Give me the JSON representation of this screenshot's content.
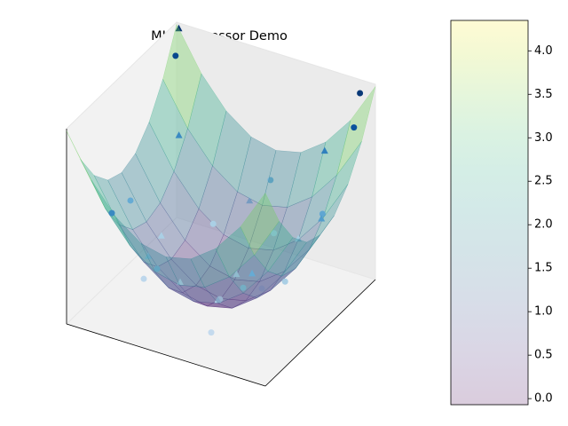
{
  "chart_data": {
    "type": "surface3d",
    "title": "MLP Regressor Demo",
    "surface": {
      "x": [
        -1,
        -0.75,
        -0.5,
        -0.25,
        0,
        0.25,
        0.5,
        0.75,
        1
      ],
      "y": [
        -1,
        -0.75,
        -0.5,
        -0.25,
        0,
        0.25,
        0.5,
        0.75,
        1
      ],
      "z": [
        [
          4.3,
          3.36,
          2.69,
          2.28,
          2.15,
          2.28,
          2.69,
          3.36,
          4.3
        ],
        [
          3.36,
          2.42,
          1.75,
          1.34,
          1.21,
          1.34,
          1.75,
          2.42,
          3.36
        ],
        [
          2.69,
          1.75,
          1.08,
          0.67,
          0.54,
          0.67,
          1.08,
          1.75,
          2.69
        ],
        [
          2.28,
          1.34,
          0.67,
          0.26,
          0.13,
          0.26,
          0.67,
          1.34,
          2.28
        ],
        [
          2.15,
          1.21,
          0.54,
          0.13,
          0,
          0.13,
          0.54,
          1.21,
          2.15
        ],
        [
          2.28,
          1.34,
          0.67,
          0.26,
          0.13,
          0.26,
          0.67,
          1.34,
          2.28
        ],
        [
          2.69,
          1.75,
          1.08,
          0.67,
          0.54,
          0.67,
          1.08,
          1.75,
          2.69
        ],
        [
          3.36,
          2.42,
          1.75,
          1.34,
          1.21,
          1.34,
          1.75,
          2.42,
          3.36
        ],
        [
          4.3,
          3.36,
          2.69,
          2.28,
          2.15,
          2.28,
          2.69,
          3.36,
          4.3
        ]
      ],
      "colormap": "viridis"
    },
    "scatter": [
      {
        "marker": "o",
        "colormap": "Blues",
        "x": [
          -0.9,
          -0.6,
          0.9,
          0.95,
          0.1,
          -0.3,
          0.5,
          0.2,
          -0.8,
          0.7,
          0,
          -0.5,
          0.3,
          0.8,
          -0.2,
          0.4
        ],
        "y": [
          0.8,
          -0.9,
          0.9,
          0.7,
          -0.2,
          0.4,
          -0.5,
          0.6,
          -0.2,
          -0.1,
          0.9,
          -0.5,
          0.2,
          0.4,
          -0.8,
          -0.9
        ],
        "z": [
          3.9,
          2.6,
          4.2,
          3.7,
          0.3,
          1.0,
          1.2,
          0.9,
          1.9,
          1.0,
          1.6,
          0.7,
          0.2,
          2.0,
          1.5,
          0.6
        ]
      },
      {
        "marker": "^",
        "colormap": "Blues",
        "x": [
          -0.95,
          0.6,
          -0.7,
          0.1,
          -0.4,
          0.9,
          0.3,
          -0.1,
          0.5,
          -0.6,
          0.7,
          -0.3
        ],
        "y": [
          0.95,
          0.8,
          0.5,
          0.1,
          -0.6,
          0.2,
          -0.6,
          0.7,
          0.5,
          0,
          -0.7,
          -0.2
        ],
        "z": [
          4.3,
          2.8,
          2.6,
          0.5,
          1.4,
          2.2,
          0.9,
          1.3,
          1.1,
          1.0,
          1.9,
          0.4
        ]
      }
    ],
    "xlim": [
      -1,
      1
    ],
    "ylim": [
      -1,
      1
    ],
    "zlim": [
      -0.07,
      4.35
    ],
    "colorbar": {
      "lim": [
        -0.07,
        4.35
      ],
      "alpha": 0.2,
      "ticks": [
        {
          "value": 0,
          "label": "0.0"
        },
        {
          "value": 0.5,
          "label": "0.5"
        },
        {
          "value": 1,
          "label": "1.0"
        },
        {
          "value": 1.5,
          "label": "1.5"
        },
        {
          "value": 2,
          "label": "2.0"
        },
        {
          "value": 2.5,
          "label": "2.5"
        },
        {
          "value": 3,
          "label": "3.0"
        },
        {
          "value": 3.5,
          "label": "3.5"
        },
        {
          "value": 4,
          "label": "4.0"
        }
      ]
    }
  }
}
